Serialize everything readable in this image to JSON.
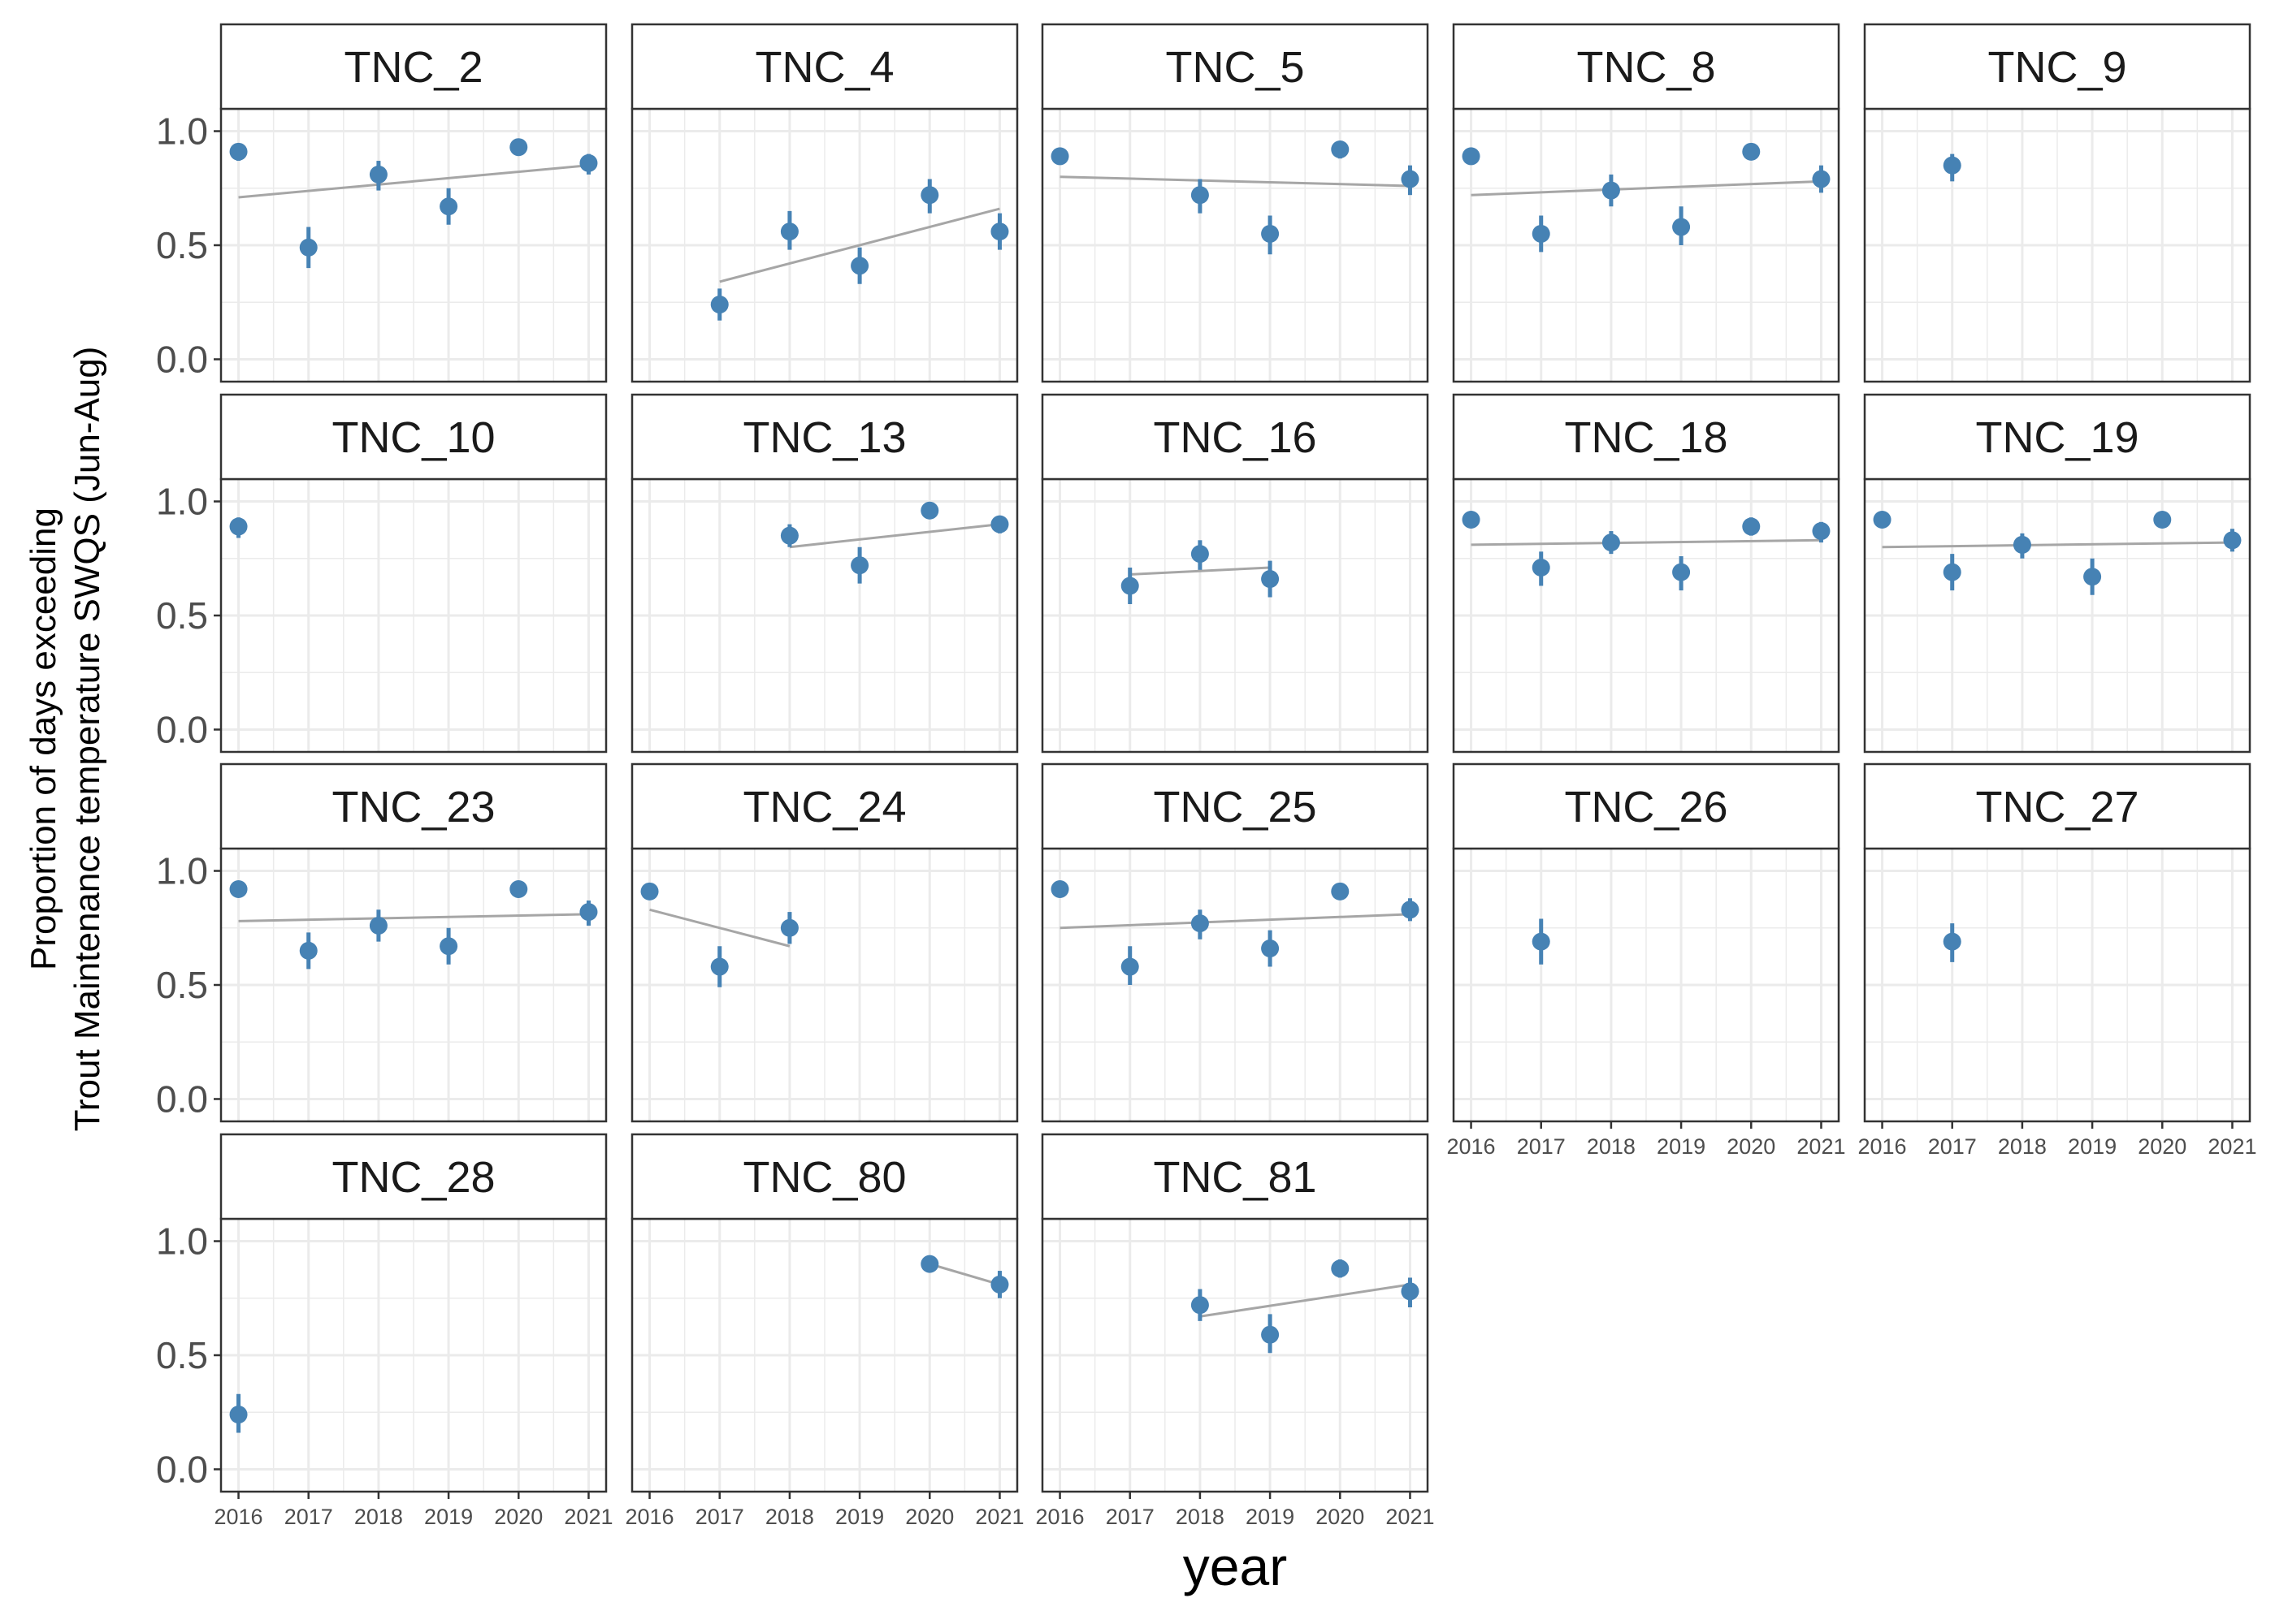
{
  "chart_data": {
    "type": "scatter",
    "xlabel": "year",
    "ylabel_lines": [
      "Proportion of days exceeding",
      "Trout Maintenance temperature SWQS (Jun-Aug)"
    ],
    "x_ticks": [
      "2016",
      "2017",
      "2018",
      "2019",
      "2020",
      "2021"
    ],
    "y_ticks": [
      "0.0",
      "0.5",
      "1.0"
    ],
    "xlim": [
      2016,
      2021
    ],
    "ylim": [
      0,
      1
    ],
    "grid": true,
    "colors": {
      "point": "#4682b4",
      "trend": "#a6a6a6",
      "strip_fill": "#ffffff",
      "border": "#333333",
      "grid": "#ebebeb"
    },
    "panels": [
      {
        "name": "TNC_2",
        "points": [
          {
            "x": 2016,
            "y": 0.91,
            "lo": 0.87,
            "hi": 0.94
          },
          {
            "x": 2017,
            "y": 0.49,
            "lo": 0.4,
            "hi": 0.58
          },
          {
            "x": 2018,
            "y": 0.81,
            "lo": 0.74,
            "hi": 0.87
          },
          {
            "x": 2019,
            "y": 0.67,
            "lo": 0.59,
            "hi": 0.75
          },
          {
            "x": 2020,
            "y": 0.93,
            "lo": 0.9,
            "hi": 0.96
          },
          {
            "x": 2021,
            "y": 0.86,
            "lo": 0.81,
            "hi": 0.9
          }
        ],
        "trend": [
          [
            2016,
            0.71
          ],
          [
            2021,
            0.85
          ]
        ]
      },
      {
        "name": "TNC_4",
        "points": [
          {
            "x": 2017,
            "y": 0.24,
            "lo": 0.17,
            "hi": 0.31
          },
          {
            "x": 2018,
            "y": 0.56,
            "lo": 0.48,
            "hi": 0.65
          },
          {
            "x": 2019,
            "y": 0.41,
            "lo": 0.33,
            "hi": 0.49
          },
          {
            "x": 2020,
            "y": 0.72,
            "lo": 0.64,
            "hi": 0.79
          },
          {
            "x": 2021,
            "y": 0.56,
            "lo": 0.48,
            "hi": 0.64
          }
        ],
        "trend": [
          [
            2017,
            0.34
          ],
          [
            2021,
            0.66
          ]
        ]
      },
      {
        "name": "TNC_5",
        "points": [
          {
            "x": 2016,
            "y": 0.89,
            "lo": 0.86,
            "hi": 0.92
          },
          {
            "x": 2018,
            "y": 0.72,
            "lo": 0.64,
            "hi": 0.79
          },
          {
            "x": 2019,
            "y": 0.55,
            "lo": 0.46,
            "hi": 0.63
          },
          {
            "x": 2020,
            "y": 0.92,
            "lo": 0.88,
            "hi": 0.95
          },
          {
            "x": 2021,
            "y": 0.79,
            "lo": 0.72,
            "hi": 0.85
          }
        ],
        "trend": [
          [
            2016,
            0.8
          ],
          [
            2021,
            0.76
          ]
        ]
      },
      {
        "name": "TNC_8",
        "points": [
          {
            "x": 2016,
            "y": 0.89,
            "lo": 0.86,
            "hi": 0.92
          },
          {
            "x": 2017,
            "y": 0.55,
            "lo": 0.47,
            "hi": 0.63
          },
          {
            "x": 2018,
            "y": 0.74,
            "lo": 0.67,
            "hi": 0.81
          },
          {
            "x": 2019,
            "y": 0.58,
            "lo": 0.5,
            "hi": 0.67
          },
          {
            "x": 2020,
            "y": 0.91,
            "lo": 0.88,
            "hi": 0.94
          },
          {
            "x": 2021,
            "y": 0.79,
            "lo": 0.73,
            "hi": 0.85
          }
        ],
        "trend": [
          [
            2016,
            0.72
          ],
          [
            2021,
            0.78
          ]
        ]
      },
      {
        "name": "TNC_9",
        "points": [
          {
            "x": 2017,
            "y": 0.85,
            "lo": 0.78,
            "hi": 0.9
          }
        ],
        "trend": []
      },
      {
        "name": "TNC_10",
        "points": [
          {
            "x": 2016,
            "y": 0.89,
            "lo": 0.84,
            "hi": 0.93
          }
        ],
        "trend": []
      },
      {
        "name": "TNC_13",
        "points": [
          {
            "x": 2018,
            "y": 0.85,
            "lo": 0.8,
            "hi": 0.9
          },
          {
            "x": 2019,
            "y": 0.72,
            "lo": 0.64,
            "hi": 0.8
          },
          {
            "x": 2020,
            "y": 0.96,
            "lo": 0.94,
            "hi": 0.98
          },
          {
            "x": 2021,
            "y": 0.9,
            "lo": 0.86,
            "hi": 0.93
          }
        ],
        "trend": [
          [
            2018,
            0.8
          ],
          [
            2021,
            0.9
          ]
        ]
      },
      {
        "name": "TNC_16",
        "points": [
          {
            "x": 2017,
            "y": 0.63,
            "lo": 0.55,
            "hi": 0.71
          },
          {
            "x": 2018,
            "y": 0.77,
            "lo": 0.7,
            "hi": 0.83
          },
          {
            "x": 2019,
            "y": 0.66,
            "lo": 0.58,
            "hi": 0.74
          }
        ],
        "trend": [
          [
            2017,
            0.68
          ],
          [
            2019,
            0.71
          ]
        ]
      },
      {
        "name": "TNC_18",
        "points": [
          {
            "x": 2016,
            "y": 0.92,
            "lo": 0.89,
            "hi": 0.95
          },
          {
            "x": 2017,
            "y": 0.71,
            "lo": 0.63,
            "hi": 0.78
          },
          {
            "x": 2018,
            "y": 0.82,
            "lo": 0.77,
            "hi": 0.87
          },
          {
            "x": 2019,
            "y": 0.69,
            "lo": 0.61,
            "hi": 0.76
          },
          {
            "x": 2020,
            "y": 0.89,
            "lo": 0.85,
            "hi": 0.93
          },
          {
            "x": 2021,
            "y": 0.87,
            "lo": 0.82,
            "hi": 0.91
          }
        ],
        "trend": [
          [
            2016,
            0.81
          ],
          [
            2021,
            0.83
          ]
        ]
      },
      {
        "name": "TNC_19",
        "points": [
          {
            "x": 2016,
            "y": 0.92,
            "lo": 0.89,
            "hi": 0.95
          },
          {
            "x": 2017,
            "y": 0.69,
            "lo": 0.61,
            "hi": 0.77
          },
          {
            "x": 2018,
            "y": 0.81,
            "lo": 0.75,
            "hi": 0.86
          },
          {
            "x": 2019,
            "y": 0.67,
            "lo": 0.59,
            "hi": 0.75
          },
          {
            "x": 2020,
            "y": 0.92,
            "lo": 0.89,
            "hi": 0.95
          },
          {
            "x": 2021,
            "y": 0.83,
            "lo": 0.78,
            "hi": 0.88
          }
        ],
        "trend": [
          [
            2016,
            0.8
          ],
          [
            2021,
            0.82
          ]
        ]
      },
      {
        "name": "TNC_23",
        "points": [
          {
            "x": 2016,
            "y": 0.92,
            "lo": 0.89,
            "hi": 0.95
          },
          {
            "x": 2017,
            "y": 0.65,
            "lo": 0.57,
            "hi": 0.73
          },
          {
            "x": 2018,
            "y": 0.76,
            "lo": 0.69,
            "hi": 0.83
          },
          {
            "x": 2019,
            "y": 0.67,
            "lo": 0.59,
            "hi": 0.75
          },
          {
            "x": 2020,
            "y": 0.92,
            "lo": 0.89,
            "hi": 0.95
          },
          {
            "x": 2021,
            "y": 0.82,
            "lo": 0.76,
            "hi": 0.87
          }
        ],
        "trend": [
          [
            2016,
            0.78
          ],
          [
            2021,
            0.81
          ]
        ]
      },
      {
        "name": "TNC_24",
        "points": [
          {
            "x": 2016,
            "y": 0.91,
            "lo": 0.88,
            "hi": 0.94
          },
          {
            "x": 2017,
            "y": 0.58,
            "lo": 0.49,
            "hi": 0.67
          },
          {
            "x": 2018,
            "y": 0.75,
            "lo": 0.68,
            "hi": 0.82
          }
        ],
        "trend": [
          [
            2016,
            0.83
          ],
          [
            2018,
            0.67
          ]
        ]
      },
      {
        "name": "TNC_25",
        "points": [
          {
            "x": 2016,
            "y": 0.92,
            "lo": 0.89,
            "hi": 0.95
          },
          {
            "x": 2017,
            "y": 0.58,
            "lo": 0.5,
            "hi": 0.67
          },
          {
            "x": 2018,
            "y": 0.77,
            "lo": 0.7,
            "hi": 0.83
          },
          {
            "x": 2019,
            "y": 0.66,
            "lo": 0.58,
            "hi": 0.74
          },
          {
            "x": 2020,
            "y": 0.91,
            "lo": 0.88,
            "hi": 0.94
          },
          {
            "x": 2021,
            "y": 0.83,
            "lo": 0.78,
            "hi": 0.88
          }
        ],
        "trend": [
          [
            2016,
            0.75
          ],
          [
            2021,
            0.81
          ]
        ]
      },
      {
        "name": "TNC_26",
        "points": [
          {
            "x": 2017,
            "y": 0.69,
            "lo": 0.59,
            "hi": 0.79
          }
        ],
        "trend": []
      },
      {
        "name": "TNC_27",
        "points": [
          {
            "x": 2017,
            "y": 0.69,
            "lo": 0.6,
            "hi": 0.77
          }
        ],
        "trend": []
      },
      {
        "name": "TNC_28",
        "points": [
          {
            "x": 2016,
            "y": 0.24,
            "lo": 0.16,
            "hi": 0.33
          }
        ],
        "trend": []
      },
      {
        "name": "TNC_80",
        "points": [
          {
            "x": 2020,
            "y": 0.9,
            "lo": 0.87,
            "hi": 0.93
          },
          {
            "x": 2021,
            "y": 0.81,
            "lo": 0.75,
            "hi": 0.87
          }
        ],
        "trend": [
          [
            2020,
            0.9
          ],
          [
            2021,
            0.81
          ]
        ]
      },
      {
        "name": "TNC_81",
        "points": [
          {
            "x": 2018,
            "y": 0.72,
            "lo": 0.65,
            "hi": 0.79
          },
          {
            "x": 2019,
            "y": 0.59,
            "lo": 0.51,
            "hi": 0.68
          },
          {
            "x": 2020,
            "y": 0.88,
            "lo": 0.84,
            "hi": 0.92
          },
          {
            "x": 2021,
            "y": 0.78,
            "lo": 0.71,
            "hi": 0.84
          }
        ],
        "trend": [
          [
            2018,
            0.67
          ],
          [
            2021,
            0.81
          ]
        ]
      }
    ]
  }
}
